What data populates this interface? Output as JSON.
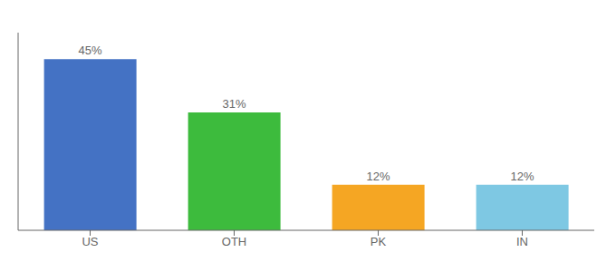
{
  "chart_data": {
    "type": "bar",
    "categories": [
      "US",
      "OTH",
      "PK",
      "IN"
    ],
    "values": [
      45,
      31,
      12,
      12
    ],
    "value_labels": [
      "45%",
      "31%",
      "12%",
      "12%"
    ],
    "colors": [
      "#4472c4",
      "#3dbb3d",
      "#f5a623",
      "#7ec8e3"
    ],
    "ylim": [
      0,
      52
    ],
    "data_labels": true,
    "tick_labels": "x"
  }
}
